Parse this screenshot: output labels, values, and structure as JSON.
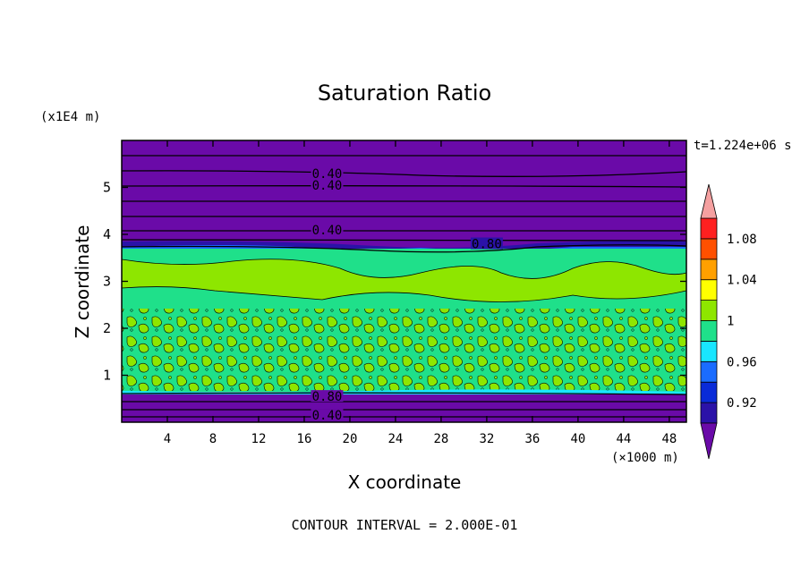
{
  "chart_data": {
    "type": "heatmap",
    "title": "Saturation Ratio",
    "xlabel": "X coordinate",
    "ylabel": "Z coordinate",
    "x_unit": "(×1000 m)",
    "y_unit": "(x1E4 m)",
    "time_label": "t=1.224e+06 s",
    "footer": "CONTOUR INTERVAL = 2.000E-01",
    "xlim": [
      0,
      49.5
    ],
    "ylim": [
      0,
      6
    ],
    "x_ticks": [
      "4",
      "8",
      "12",
      "16",
      "20",
      "24",
      "28",
      "32",
      "36",
      "40",
      "44",
      "48"
    ],
    "y_ticks": [
      "1",
      "2",
      "3",
      "4",
      "5"
    ],
    "colorbar": {
      "levels": [
        0.9,
        0.92,
        0.94,
        0.96,
        0.98,
        1.0,
        1.02,
        1.04,
        1.06,
        1.08,
        1.1
      ],
      "labels": [
        "0.92",
        "0.96",
        "1",
        "1.04",
        "1.08"
      ],
      "colors": [
        "#6a0aa8",
        "#2b12a8",
        "#0a2bd8",
        "#1a6cff",
        "#19e6ff",
        "#1fe08a",
        "#8ee600",
        "#ffff00",
        "#ffa000",
        "#ff5000",
        "#ff2020",
        "#f5a0a0"
      ]
    },
    "regions": [
      {
        "z_range": [
          0,
          0.6
        ],
        "value": "< 0.92",
        "color": "#6a0aa8"
      },
      {
        "z_range": [
          0.6,
          3.7
        ],
        "value": "0.98 - 1.02",
        "colors": [
          "#1fe08a",
          "#8ee600"
        ]
      },
      {
        "z_range": [
          3.7,
          6.0
        ],
        "value": "< 0.92",
        "color": "#6a0aa8"
      }
    ],
    "contour_labels": [
      {
        "text": "0.40",
        "x": 18,
        "z": 5.3
      },
      {
        "text": "0.40",
        "x": 18,
        "z": 5.05
      },
      {
        "text": "0.40",
        "x": 18,
        "z": 4.1
      },
      {
        "text": "0.80",
        "x": 32,
        "z": 3.8
      },
      {
        "text": "0.80",
        "x": 18,
        "z": 0.55
      },
      {
        "text": "0.40",
        "x": 18,
        "z": 0.15
      }
    ]
  }
}
